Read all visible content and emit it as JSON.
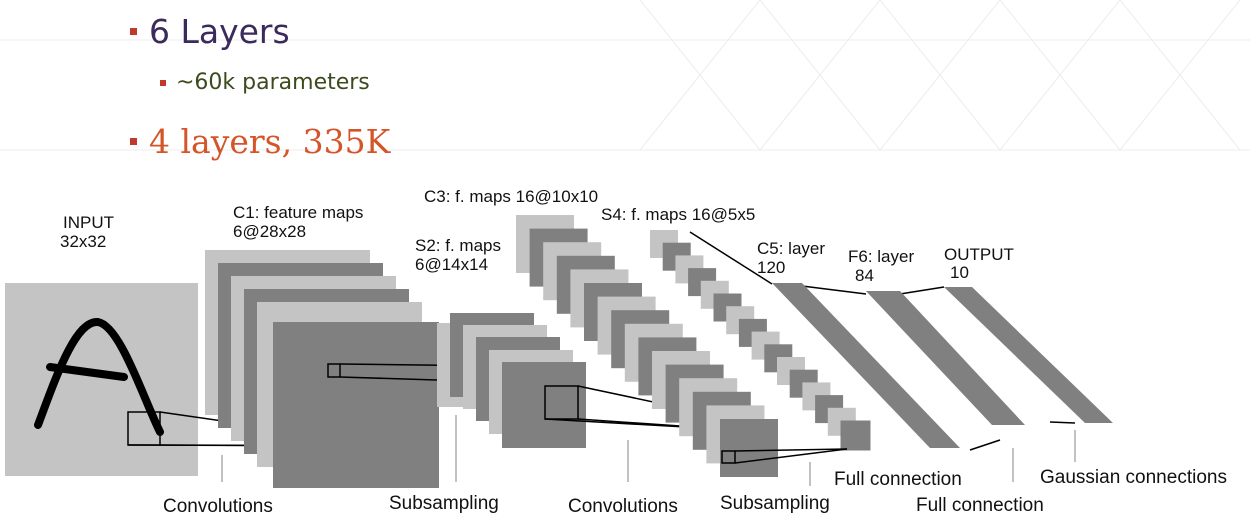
{
  "bullets": [
    {
      "text": "6 Layers"
    },
    {
      "text": "~60k parameters"
    },
    {
      "text": "4 layers, 335K"
    }
  ],
  "colors": {
    "bullet_marker": "#c0392b",
    "bullet1_text": "#3b2a5a",
    "bullet2_text": "#3c4a1e",
    "bullet3_text": "#d4552a",
    "map_light": "#c4c4c4",
    "map_dark": "#808080"
  },
  "diagram": {
    "layers": {
      "input": {
        "line1": "INPUT",
        "line2": "32x32"
      },
      "c1": {
        "line1": "C1: feature maps",
        "line2": "6@28x28"
      },
      "s2": {
        "line1": "S2: f. maps",
        "line2": "6@14x14"
      },
      "c3": {
        "line1": "C3: f. maps 16@10x10"
      },
      "s4": {
        "line1": "S4: f. maps 16@5x5"
      },
      "c5": {
        "line1": "C5: layer",
        "line2": "120"
      },
      "f6": {
        "line1": "F6: layer",
        "line2": "84"
      },
      "output": {
        "line1": "OUTPUT",
        "line2": "10"
      }
    },
    "connections": {
      "conv1": "Convolutions",
      "sub1": "Subsampling",
      "conv2": "Convolutions",
      "sub2": "Subsampling",
      "full1": "Full connection",
      "full2": "Full connection",
      "gauss": "Gaussian connections"
    }
  }
}
